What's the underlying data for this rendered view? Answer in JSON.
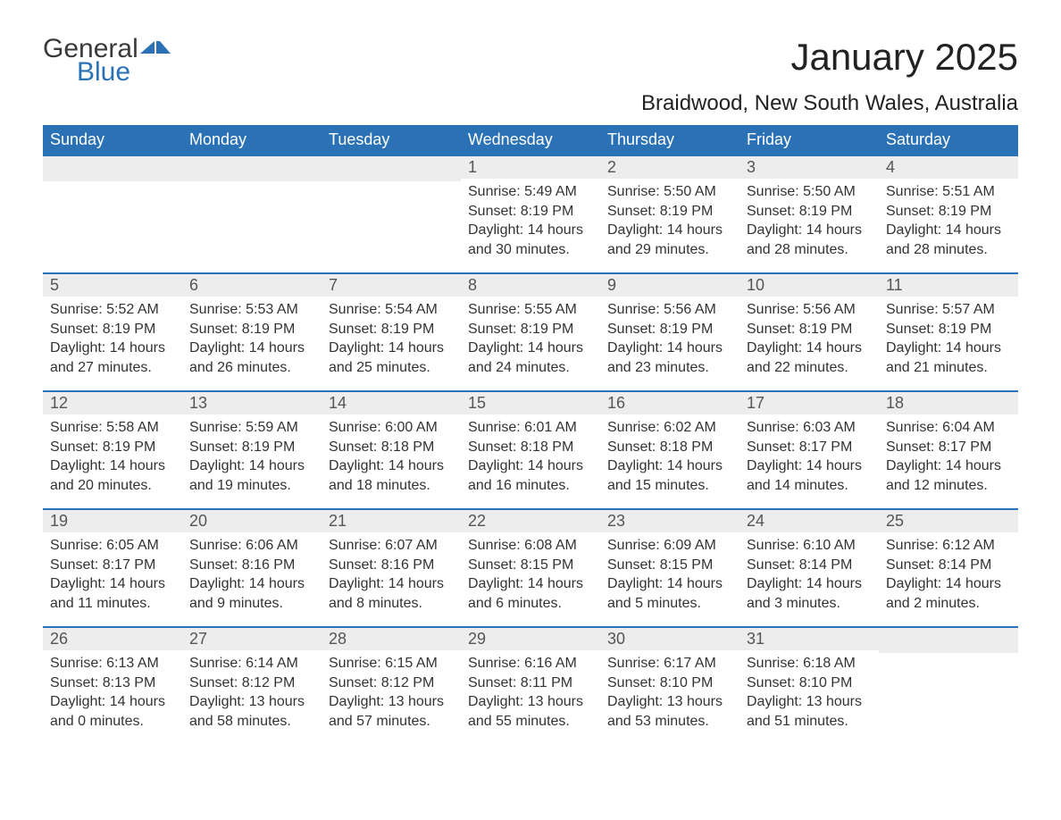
{
  "logo": {
    "text1": "General",
    "text2": "Blue",
    "accent_color": "#2a72b5",
    "dark_color": "#3a3a3a"
  },
  "title": "January 2025",
  "location": "Braidwood, New South Wales, Australia",
  "weekdays": [
    "Sunday",
    "Monday",
    "Tuesday",
    "Wednesday",
    "Thursday",
    "Friday",
    "Saturday"
  ],
  "colors": {
    "header_bg": "#2a72b5",
    "header_text": "#ffffff",
    "daynum_bg": "#ededed",
    "border": "#2a72b5",
    "text": "#333333"
  },
  "weeks": [
    [
      null,
      null,
      null,
      {
        "d": "1",
        "sunrise": "5:49 AM",
        "sunset": "8:19 PM",
        "daylight": "14 hours and 30 minutes."
      },
      {
        "d": "2",
        "sunrise": "5:50 AM",
        "sunset": "8:19 PM",
        "daylight": "14 hours and 29 minutes."
      },
      {
        "d": "3",
        "sunrise": "5:50 AM",
        "sunset": "8:19 PM",
        "daylight": "14 hours and 28 minutes."
      },
      {
        "d": "4",
        "sunrise": "5:51 AM",
        "sunset": "8:19 PM",
        "daylight": "14 hours and 28 minutes."
      }
    ],
    [
      {
        "d": "5",
        "sunrise": "5:52 AM",
        "sunset": "8:19 PM",
        "daylight": "14 hours and 27 minutes."
      },
      {
        "d": "6",
        "sunrise": "5:53 AM",
        "sunset": "8:19 PM",
        "daylight": "14 hours and 26 minutes."
      },
      {
        "d": "7",
        "sunrise": "5:54 AM",
        "sunset": "8:19 PM",
        "daylight": "14 hours and 25 minutes."
      },
      {
        "d": "8",
        "sunrise": "5:55 AM",
        "sunset": "8:19 PM",
        "daylight": "14 hours and 24 minutes."
      },
      {
        "d": "9",
        "sunrise": "5:56 AM",
        "sunset": "8:19 PM",
        "daylight": "14 hours and 23 minutes."
      },
      {
        "d": "10",
        "sunrise": "5:56 AM",
        "sunset": "8:19 PM",
        "daylight": "14 hours and 22 minutes."
      },
      {
        "d": "11",
        "sunrise": "5:57 AM",
        "sunset": "8:19 PM",
        "daylight": "14 hours and 21 minutes."
      }
    ],
    [
      {
        "d": "12",
        "sunrise": "5:58 AM",
        "sunset": "8:19 PM",
        "daylight": "14 hours and 20 minutes."
      },
      {
        "d": "13",
        "sunrise": "5:59 AM",
        "sunset": "8:19 PM",
        "daylight": "14 hours and 19 minutes."
      },
      {
        "d": "14",
        "sunrise": "6:00 AM",
        "sunset": "8:18 PM",
        "daylight": "14 hours and 18 minutes."
      },
      {
        "d": "15",
        "sunrise": "6:01 AM",
        "sunset": "8:18 PM",
        "daylight": "14 hours and 16 minutes."
      },
      {
        "d": "16",
        "sunrise": "6:02 AM",
        "sunset": "8:18 PM",
        "daylight": "14 hours and 15 minutes."
      },
      {
        "d": "17",
        "sunrise": "6:03 AM",
        "sunset": "8:17 PM",
        "daylight": "14 hours and 14 minutes."
      },
      {
        "d": "18",
        "sunrise": "6:04 AM",
        "sunset": "8:17 PM",
        "daylight": "14 hours and 12 minutes."
      }
    ],
    [
      {
        "d": "19",
        "sunrise": "6:05 AM",
        "sunset": "8:17 PM",
        "daylight": "14 hours and 11 minutes."
      },
      {
        "d": "20",
        "sunrise": "6:06 AM",
        "sunset": "8:16 PM",
        "daylight": "14 hours and 9 minutes."
      },
      {
        "d": "21",
        "sunrise": "6:07 AM",
        "sunset": "8:16 PM",
        "daylight": "14 hours and 8 minutes."
      },
      {
        "d": "22",
        "sunrise": "6:08 AM",
        "sunset": "8:15 PM",
        "daylight": "14 hours and 6 minutes."
      },
      {
        "d": "23",
        "sunrise": "6:09 AM",
        "sunset": "8:15 PM",
        "daylight": "14 hours and 5 minutes."
      },
      {
        "d": "24",
        "sunrise": "6:10 AM",
        "sunset": "8:14 PM",
        "daylight": "14 hours and 3 minutes."
      },
      {
        "d": "25",
        "sunrise": "6:12 AM",
        "sunset": "8:14 PM",
        "daylight": "14 hours and 2 minutes."
      }
    ],
    [
      {
        "d": "26",
        "sunrise": "6:13 AM",
        "sunset": "8:13 PM",
        "daylight": "14 hours and 0 minutes."
      },
      {
        "d": "27",
        "sunrise": "6:14 AM",
        "sunset": "8:12 PM",
        "daylight": "13 hours and 58 minutes."
      },
      {
        "d": "28",
        "sunrise": "6:15 AM",
        "sunset": "8:12 PM",
        "daylight": "13 hours and 57 minutes."
      },
      {
        "d": "29",
        "sunrise": "6:16 AM",
        "sunset": "8:11 PM",
        "daylight": "13 hours and 55 minutes."
      },
      {
        "d": "30",
        "sunrise": "6:17 AM",
        "sunset": "8:10 PM",
        "daylight": "13 hours and 53 minutes."
      },
      {
        "d": "31",
        "sunrise": "6:18 AM",
        "sunset": "8:10 PM",
        "daylight": "13 hours and 51 minutes."
      },
      null
    ]
  ],
  "labels": {
    "sunrise": "Sunrise: ",
    "sunset": "Sunset: ",
    "daylight": "Daylight: "
  }
}
